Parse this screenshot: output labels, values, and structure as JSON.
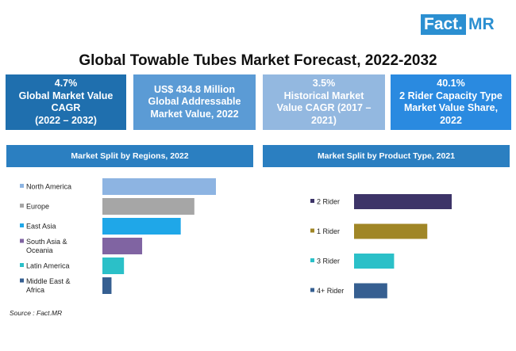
{
  "brand": {
    "logo_part1": "Fact.",
    "logo_part2": "MR"
  },
  "title": "Global Towable Tubes Market Forecast, 2022-2032",
  "kpis": [
    {
      "lines": [
        "4.7%",
        "Global Market Value",
        "CAGR",
        "(2022 – 2032)"
      ],
      "color": "#1f6fae"
    },
    {
      "lines": [
        "US$ 434.8 Million",
        "Global Addressable",
        "Market Value, 2022"
      ],
      "color": "#5b9bd5"
    },
    {
      "lines": [
        "3.5%",
        "Historical Market",
        "Value CAGR (2017 –",
        "2021)"
      ],
      "color": "#93b8e0"
    },
    {
      "lines": [
        "40.1%",
        "2 Rider Capacity Type",
        "Market Value Share,",
        "2022"
      ],
      "color": "#2a8ae0"
    }
  ],
  "source": "Source : Fact.MR",
  "chart_data": [
    {
      "type": "bar",
      "orientation": "horizontal",
      "title": "Market Split by Regions, 2022",
      "categories": [
        "North America",
        "Europe",
        "East Asia",
        "South Asia & Oceania",
        "Latin America",
        "Middle East & Africa"
      ],
      "category_lines": [
        [
          "North America"
        ],
        [
          "Europe"
        ],
        [
          "East Asia"
        ],
        [
          "South Asia &",
          "Oceania"
        ],
        [
          "Latin America"
        ],
        [
          "Middle East &",
          "Africa"
        ]
      ],
      "values": [
        100,
        81,
        69,
        35,
        19,
        8
      ],
      "colors": [
        "#8db4e2",
        "#a6a6a6",
        "#1fa7e8",
        "#8064a2",
        "#2bc0c8",
        "#365f91"
      ],
      "xlim": [
        0,
        100
      ],
      "legend": "left"
    },
    {
      "type": "bar",
      "orientation": "horizontal",
      "title": "Market Split by Product Type, 2021",
      "categories": [
        "2 Rider",
        "1 Rider",
        "3 Rider",
        "4+ Rider"
      ],
      "values": [
        100,
        75,
        41,
        34
      ],
      "colors": [
        "#3d3468",
        "#a08626",
        "#2bc0c8",
        "#365f91"
      ],
      "xlim": [
        0,
        100
      ],
      "legend": "left"
    }
  ]
}
